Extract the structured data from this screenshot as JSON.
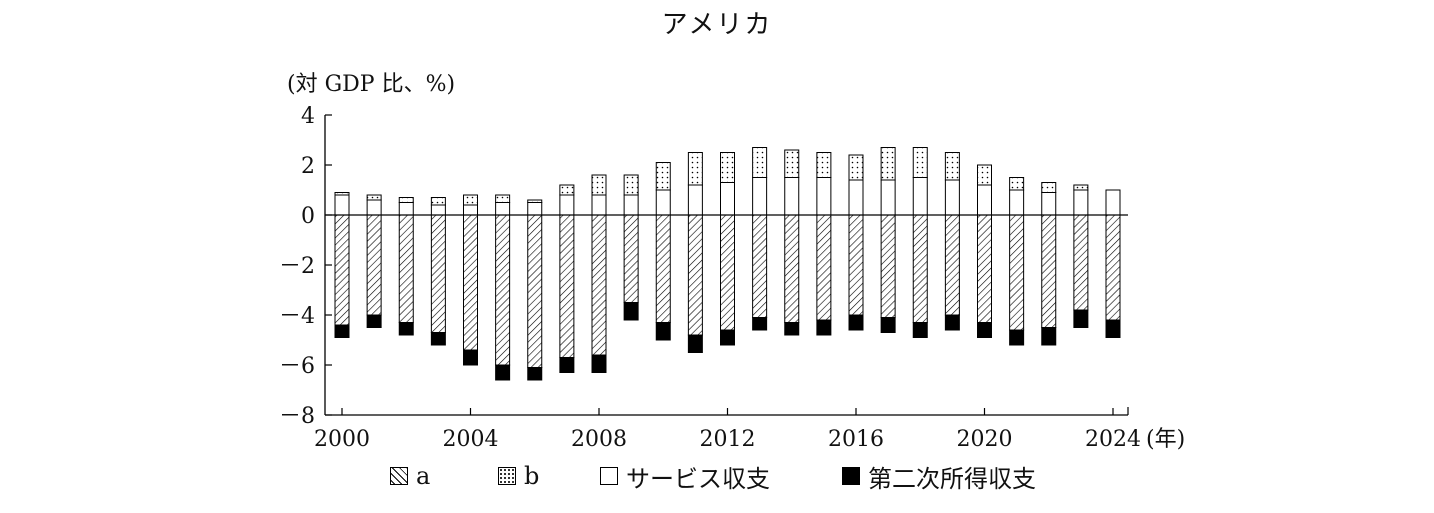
{
  "title": "アメリカ",
  "unit_label": "(対 GDP 比、%)",
  "chart_data": {
    "type": "bar",
    "stacked": true,
    "title": "アメリカ",
    "ylabel": "(対 GDP 比、%)",
    "xlabel": "(年)",
    "ylim": [
      -8,
      4
    ],
    "yticks": [
      4,
      2,
      0,
      -2,
      -4,
      -6,
      -8
    ],
    "ytick_labels": [
      "4",
      "2",
      "0",
      "－2",
      "－4",
      "－6",
      "－8"
    ],
    "xtick_labels": [
      "2000",
      "2004",
      "2008",
      "2012",
      "2016",
      "2020",
      "2024"
    ],
    "x_unit": "(年)",
    "categories": [
      "2000",
      "2001",
      "2002",
      "2003",
      "2004",
      "2005",
      "2006",
      "2007",
      "2008",
      "2009",
      "2010",
      "2011",
      "2012",
      "2013",
      "2014",
      "2015",
      "2016",
      "2017",
      "2018",
      "2019",
      "2020",
      "2021",
      "2022",
      "2023",
      "2024"
    ],
    "series": [
      {
        "name": "a",
        "pattern": "hatch",
        "values": [
          -4.4,
          -4.0,
          -4.3,
          -4.7,
          -5.4,
          -6.0,
          -6.1,
          -5.7,
          -5.6,
          -3.5,
          -4.3,
          -4.8,
          -4.6,
          -4.1,
          -4.3,
          -4.2,
          -4.0,
          -4.1,
          -4.3,
          -4.0,
          -4.3,
          -4.6,
          -4.5,
          -3.8,
          -4.2
        ]
      },
      {
        "name": "b",
        "pattern": "dots",
        "values": [
          0.1,
          0.2,
          0.2,
          0.3,
          0.4,
          0.3,
          0.1,
          0.4,
          0.8,
          0.8,
          1.1,
          1.3,
          1.2,
          1.2,
          1.1,
          1.0,
          1.0,
          1.3,
          1.2,
          1.1,
          0.8,
          0.5,
          0.4,
          0.2,
          0.0
        ]
      },
      {
        "name": "サービス収支",
        "pattern": "white",
        "values": [
          0.8,
          0.6,
          0.5,
          0.4,
          0.4,
          0.5,
          0.5,
          0.8,
          0.8,
          0.8,
          1.0,
          1.2,
          1.3,
          1.5,
          1.5,
          1.5,
          1.4,
          1.4,
          1.5,
          1.4,
          1.2,
          1.0,
          0.9,
          1.0,
          1.0
        ]
      },
      {
        "name": "第二次所得収支",
        "pattern": "black",
        "values": [
          -0.5,
          -0.5,
          -0.5,
          -0.5,
          -0.6,
          -0.6,
          -0.5,
          -0.6,
          -0.7,
          -0.7,
          -0.7,
          -0.7,
          -0.6,
          -0.5,
          -0.5,
          -0.6,
          -0.6,
          -0.6,
          -0.6,
          -0.6,
          -0.6,
          -0.6,
          -0.7,
          -0.7,
          -0.7
        ]
      }
    ],
    "grid": false,
    "legend_position": "bottom"
  },
  "legend": [
    {
      "label": "a"
    },
    {
      "label": "b"
    },
    {
      "label": "サービス収支"
    },
    {
      "label": "第二次所得収支"
    }
  ]
}
